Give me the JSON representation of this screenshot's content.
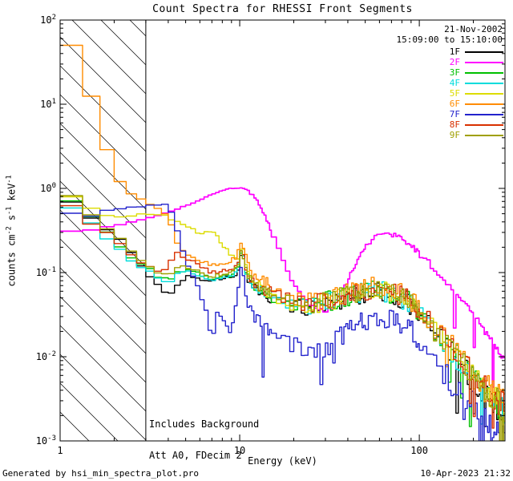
{
  "title": "Count Spectra for RHESSI Front Segments",
  "annotations": {
    "date": "21-Nov-2002",
    "time_range": "15:09:00 to 15:10:00",
    "note1": "Includes Background",
    "note2": "Att A0, FDecim 2"
  },
  "footer": {
    "left": "Generated by hsi_min_spectra_plot.pro",
    "right": "10-Apr-2023 21:32"
  },
  "chart_data": {
    "type": "line",
    "title": "Count Spectra for RHESSI Front Segments",
    "xlabel": "Energy (keV)",
    "ylabel": "counts cm^-2 s^-1 keV^-1",
    "xscale": "log",
    "yscale": "log",
    "xlim": [
      1,
      300
    ],
    "ylim": [
      0.001,
      100
    ],
    "x_ticks": [
      1,
      10,
      100
    ],
    "y_tick_exponents": [
      -3,
      -2,
      -1,
      0,
      1,
      2
    ],
    "grid": false,
    "legend_position": "top-right",
    "hatch_region": {
      "x_min": 1,
      "x_max": 3,
      "style": "diagonal-hatch"
    },
    "series": [
      {
        "name": "1F",
        "color": "#000000",
        "noise": 1.0,
        "dips": false,
        "width": 1.4,
        "x": [
          1,
          1.3,
          1.6,
          2,
          2.5,
          3,
          3.5,
          4,
          4.5,
          5,
          6,
          7,
          8,
          9,
          9.7,
          10.3,
          11,
          12,
          14,
          17,
          20,
          25,
          30,
          40,
          50,
          60,
          70,
          85,
          100,
          130,
          170,
          220,
          300
        ],
        "y": [
          0.85,
          0.55,
          0.38,
          0.28,
          0.18,
          0.1,
          0.075,
          0.05,
          0.07,
          0.09,
          0.085,
          0.08,
          0.085,
          0.09,
          0.1,
          0.17,
          0.08,
          0.065,
          0.055,
          0.045,
          0.04,
          0.038,
          0.042,
          0.05,
          0.058,
          0.06,
          0.055,
          0.045,
          0.032,
          0.017,
          0.008,
          0.004,
          0.002
        ]
      },
      {
        "name": "2F",
        "color": "#ff00ff",
        "noise": 0.25,
        "dips": false,
        "width": 1.7,
        "x": [
          1,
          1.5,
          2,
          2.5,
          3,
          3.5,
          4,
          5,
          6,
          7,
          8,
          9,
          10,
          11,
          12,
          13,
          14,
          16,
          18,
          20,
          22,
          25,
          28,
          32,
          36,
          40,
          45,
          50,
          55,
          60,
          65,
          70,
          80,
          90,
          100,
          120,
          140,
          170,
          200,
          250,
          300
        ],
        "y": [
          0.3,
          0.32,
          0.36,
          0.4,
          0.44,
          0.48,
          0.52,
          0.62,
          0.72,
          0.85,
          0.95,
          1.0,
          1.02,
          0.95,
          0.8,
          0.62,
          0.45,
          0.22,
          0.12,
          0.075,
          0.055,
          0.04,
          0.035,
          0.037,
          0.05,
          0.08,
          0.14,
          0.2,
          0.26,
          0.29,
          0.3,
          0.29,
          0.25,
          0.21,
          0.17,
          0.115,
          0.08,
          0.05,
          0.032,
          0.016,
          0.009
        ]
      },
      {
        "name": "3F",
        "color": "#00c000",
        "noise": 1.0,
        "dips": false,
        "width": 1.4,
        "x": [
          1,
          1.3,
          1.6,
          2,
          2.5,
          3,
          3.5,
          4,
          4.5,
          5,
          6,
          7,
          8,
          9,
          9.7,
          10.3,
          11,
          12,
          14,
          17,
          20,
          25,
          30,
          40,
          50,
          60,
          70,
          85,
          100,
          130,
          170,
          220,
          300
        ],
        "y": [
          0.92,
          0.6,
          0.4,
          0.25,
          0.15,
          0.12,
          0.09,
          0.08,
          0.1,
          0.11,
          0.095,
          0.085,
          0.09,
          0.095,
          0.11,
          0.18,
          0.09,
          0.07,
          0.058,
          0.048,
          0.042,
          0.04,
          0.045,
          0.052,
          0.06,
          0.062,
          0.057,
          0.047,
          0.034,
          0.018,
          0.009,
          0.0045,
          0.0025
        ]
      },
      {
        "name": "4F",
        "color": "#00dcdc",
        "noise": 1.0,
        "dips": false,
        "width": 1.4,
        "x": [
          1,
          1.3,
          1.6,
          2,
          2.5,
          3,
          3.5,
          4,
          4.5,
          5,
          6,
          7,
          8,
          9,
          9.7,
          10.3,
          11,
          12,
          14,
          17,
          20,
          25,
          30,
          40,
          50,
          60,
          70,
          85,
          100,
          130,
          170,
          220,
          300
        ],
        "y": [
          0.72,
          0.5,
          0.34,
          0.22,
          0.14,
          0.11,
          0.085,
          0.075,
          0.095,
          0.105,
          0.09,
          0.082,
          0.088,
          0.092,
          0.105,
          0.2,
          0.085,
          0.068,
          0.056,
          0.046,
          0.041,
          0.039,
          0.044,
          0.051,
          0.059,
          0.061,
          0.056,
          0.046,
          0.033,
          0.0175,
          0.0085,
          0.0042,
          0.0023
        ]
      },
      {
        "name": "5F",
        "color": "#dcdc00",
        "noise": 1.0,
        "dips": false,
        "width": 1.4,
        "x": [
          1,
          1.3,
          1.6,
          2,
          2.5,
          3,
          3.5,
          4,
          4.5,
          5,
          6,
          7,
          8,
          9,
          9.7,
          10.3,
          11,
          12,
          14,
          17,
          20,
          25,
          30,
          40,
          50,
          60,
          70,
          85,
          100,
          130,
          170,
          220,
          300
        ],
        "y": [
          0.95,
          0.7,
          0.52,
          0.44,
          0.48,
          0.52,
          0.5,
          0.45,
          0.4,
          0.35,
          0.3,
          0.32,
          0.22,
          0.16,
          0.14,
          0.22,
          0.1,
          0.075,
          0.06,
          0.05,
          0.043,
          0.04,
          0.045,
          0.052,
          0.06,
          0.062,
          0.057,
          0.047,
          0.034,
          0.018,
          0.009,
          0.0045,
          0.0024
        ]
      },
      {
        "name": "6F",
        "color": "#ff8c00",
        "noise": 1.0,
        "dips": false,
        "width": 1.4,
        "x": [
          1,
          1.25,
          1.4,
          1.6,
          1.8,
          2,
          2.3,
          2.6,
          3,
          3.5,
          4,
          4.5,
          5,
          6,
          7,
          8,
          9,
          9.7,
          10.3,
          11,
          12,
          14,
          17,
          20,
          25,
          30,
          40,
          50,
          60,
          70,
          85,
          100,
          130,
          170,
          220,
          300
        ],
        "y": [
          48,
          48,
          19,
          7.5,
          3.2,
          1.5,
          1.0,
          0.78,
          0.7,
          0.6,
          0.45,
          0.22,
          0.16,
          0.14,
          0.12,
          0.13,
          0.14,
          0.16,
          0.25,
          0.13,
          0.095,
          0.075,
          0.06,
          0.05,
          0.045,
          0.048,
          0.056,
          0.065,
          0.068,
          0.063,
          0.052,
          0.038,
          0.02,
          0.01,
          0.005,
          0.003
        ]
      },
      {
        "name": "7F",
        "color": "#2222cc",
        "noise": 1.2,
        "dips": true,
        "width": 1.4,
        "x": [
          1,
          1.3,
          1.6,
          2,
          2.5,
          3,
          3.5,
          4,
          4.3,
          4.6,
          5,
          5.5,
          6,
          6.5,
          7,
          7.5,
          8,
          8.5,
          9,
          9.7,
          10.3,
          11,
          12,
          14,
          17,
          20,
          25,
          30,
          40,
          50,
          60,
          70,
          85,
          100,
          130,
          170,
          220,
          300
        ],
        "y": [
          0.5,
          0.48,
          0.5,
          0.54,
          0.57,
          0.6,
          0.64,
          0.66,
          0.45,
          0.25,
          0.14,
          0.09,
          0.06,
          0.035,
          0.015,
          0.035,
          0.028,
          0.022,
          0.02,
          0.05,
          0.13,
          0.045,
          0.03,
          0.022,
          0.017,
          0.014,
          0.012,
          0.013,
          0.02,
          0.028,
          0.032,
          0.03,
          0.024,
          0.016,
          0.008,
          0.004,
          0.002,
          0.001
        ]
      },
      {
        "name": "8F",
        "color": "#d83000",
        "noise": 1.0,
        "dips": false,
        "width": 1.4,
        "x": [
          1,
          1.3,
          1.6,
          2,
          2.5,
          3,
          3.5,
          4,
          4.5,
          5,
          6,
          7,
          8,
          9,
          9.7,
          10.3,
          11,
          12,
          14,
          17,
          20,
          25,
          30,
          40,
          50,
          60,
          70,
          85,
          100,
          130,
          170,
          220,
          300
        ],
        "y": [
          0.8,
          0.52,
          0.34,
          0.26,
          0.16,
          0.12,
          0.1,
          0.12,
          0.17,
          0.15,
          0.12,
          0.1,
          0.105,
          0.11,
          0.12,
          0.19,
          0.095,
          0.075,
          0.06,
          0.05,
          0.044,
          0.041,
          0.046,
          0.054,
          0.062,
          0.064,
          0.059,
          0.048,
          0.035,
          0.019,
          0.0095,
          0.0048,
          0.0026
        ]
      },
      {
        "name": "9F",
        "color": "#a0a000",
        "noise": 1.0,
        "dips": false,
        "width": 1.4,
        "x": [
          1,
          1.3,
          1.6,
          2,
          2.5,
          3,
          3.5,
          4,
          4.5,
          5,
          6,
          7,
          8,
          9,
          9.7,
          10.3,
          11,
          12,
          14,
          17,
          20,
          25,
          30,
          40,
          50,
          60,
          70,
          85,
          100,
          130,
          170,
          220,
          300
        ],
        "y": [
          1.0,
          0.65,
          0.42,
          0.3,
          0.18,
          0.13,
          0.1,
          0.09,
          0.11,
          0.12,
          0.1,
          0.09,
          0.095,
          0.1,
          0.115,
          0.19,
          0.095,
          0.072,
          0.06,
          0.049,
          0.043,
          0.041,
          0.046,
          0.053,
          0.061,
          0.063,
          0.058,
          0.048,
          0.034,
          0.018,
          0.009,
          0.0046,
          0.0025
        ]
      }
    ]
  }
}
